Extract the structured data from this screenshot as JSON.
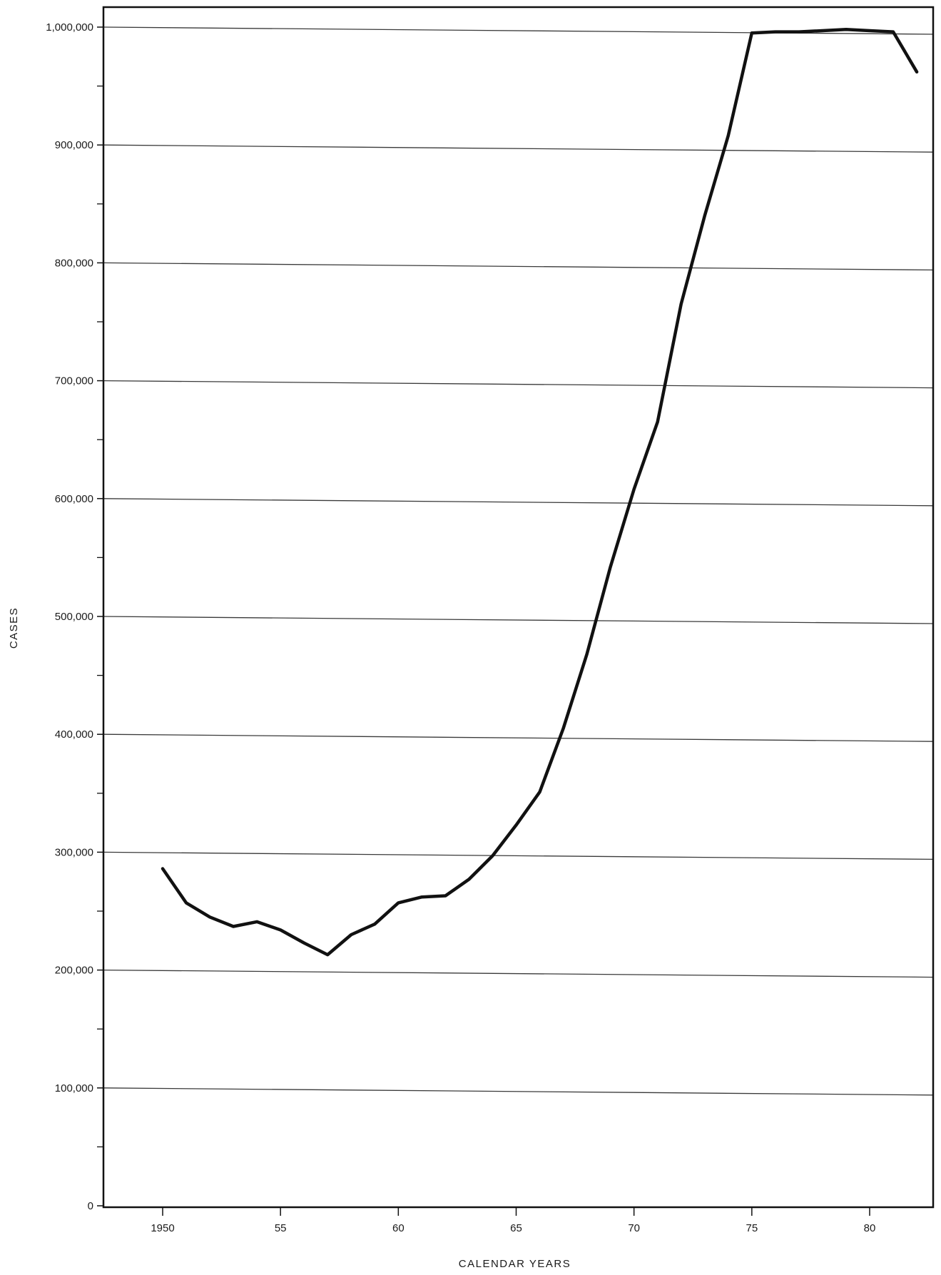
{
  "chart_data": {
    "type": "line",
    "title": "",
    "xlabel": "CALENDAR YEARS",
    "ylabel": "CASES",
    "xlim": [
      1947.5,
      1982.5
    ],
    "ylim": [
      0,
      1000000
    ],
    "grid": true,
    "x_ticks": [
      {
        "value": 1950,
        "label": "1950"
      },
      {
        "value": 1955,
        "label": "55"
      },
      {
        "value": 1960,
        "label": "60"
      },
      {
        "value": 1965,
        "label": "65"
      },
      {
        "value": 1970,
        "label": "70"
      },
      {
        "value": 1975,
        "label": "75"
      },
      {
        "value": 1980,
        "label": "80"
      }
    ],
    "y_ticks": [
      {
        "value": 0,
        "label": "0"
      },
      {
        "value": 100000,
        "label": "100,000"
      },
      {
        "value": 200000,
        "label": "200,000"
      },
      {
        "value": 300000,
        "label": "300,000"
      },
      {
        "value": 400000,
        "label": "400,000"
      },
      {
        "value": 500000,
        "label": "500,000"
      },
      {
        "value": 600000,
        "label": "600,000"
      },
      {
        "value": 700000,
        "label": "700,000"
      },
      {
        "value": 800000,
        "label": "800,000"
      },
      {
        "value": 900000,
        "label": "900,000"
      },
      {
        "value": 1000000,
        "label": "1,000,000"
      }
    ],
    "y_minor_step": 50000,
    "series": [
      {
        "name": "",
        "x": [
          1950,
          1951,
          1952,
          1953,
          1954,
          1955,
          1956,
          1957,
          1958,
          1959,
          1960,
          1961,
          1962,
          1963,
          1964,
          1965,
          1966,
          1967,
          1968,
          1969,
          1970,
          1971,
          1972,
          1973,
          1974,
          1975,
          1976,
          1977,
          1978,
          1979,
          1980,
          1981,
          1982
        ],
        "y": [
          286000,
          257000,
          245000,
          237000,
          241000,
          234000,
          223000,
          213000,
          230000,
          239000,
          257000,
          262000,
          263000,
          277000,
          297000,
          323000,
          351000,
          405000,
          468000,
          542000,
          608000,
          665000,
          765000,
          840000,
          908000,
          995000,
          996000,
          996000,
          997000,
          998000,
          997000,
          996000,
          962000
        ]
      }
    ]
  },
  "colors": {
    "line": "#111111",
    "grid": "#3a3a3a",
    "axis": "#111111"
  }
}
